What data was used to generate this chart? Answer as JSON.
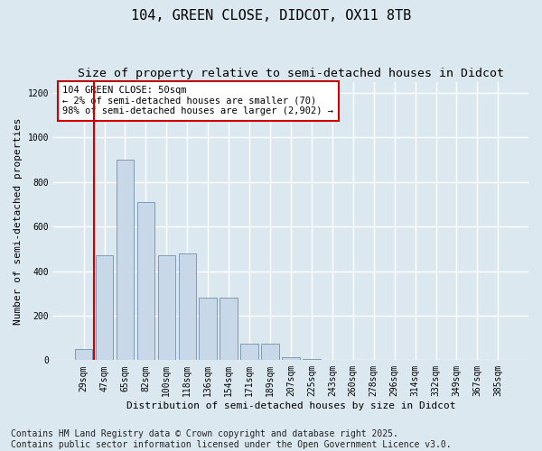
{
  "title1": "104, GREEN CLOSE, DIDCOT, OX11 8TB",
  "title2": "Size of property relative to semi-detached houses in Didcot",
  "xlabel": "Distribution of semi-detached houses by size in Didcot",
  "ylabel": "Number of semi-detached properties",
  "categories": [
    "29sqm",
    "47sqm",
    "65sqm",
    "82sqm",
    "100sqm",
    "118sqm",
    "136sqm",
    "154sqm",
    "171sqm",
    "189sqm",
    "207sqm",
    "225sqm",
    "243sqm",
    "260sqm",
    "278sqm",
    "296sqm",
    "314sqm",
    "332sqm",
    "349sqm",
    "367sqm",
    "385sqm"
  ],
  "values": [
    50,
    470,
    900,
    710,
    470,
    480,
    280,
    280,
    75,
    75,
    15,
    5,
    0,
    0,
    0,
    0,
    0,
    0,
    0,
    0,
    0
  ],
  "bar_color": "#c8d8e8",
  "bar_edge_color": "#7090b0",
  "vline_x": 0.5,
  "vline_color": "#cc0000",
  "annotation_text": "104 GREEN CLOSE: 50sqm\n← 2% of semi-detached houses are smaller (70)\n98% of semi-detached houses are larger (2,902) →",
  "annotation_box_color": "#ffffff",
  "annotation_box_edge": "#cc0000",
  "ylim": [
    0,
    1250
  ],
  "yticks": [
    0,
    200,
    400,
    600,
    800,
    1000,
    1200
  ],
  "footnote": "Contains HM Land Registry data © Crown copyright and database right 2025.\nContains public sector information licensed under the Open Government Licence v3.0.",
  "background_color": "#dce8f0",
  "plot_bg_color": "#dce8f0",
  "grid_color": "#ffffff",
  "title1_fontsize": 11,
  "title2_fontsize": 9.5,
  "axis_label_fontsize": 8,
  "tick_fontsize": 7,
  "footnote_fontsize": 7
}
